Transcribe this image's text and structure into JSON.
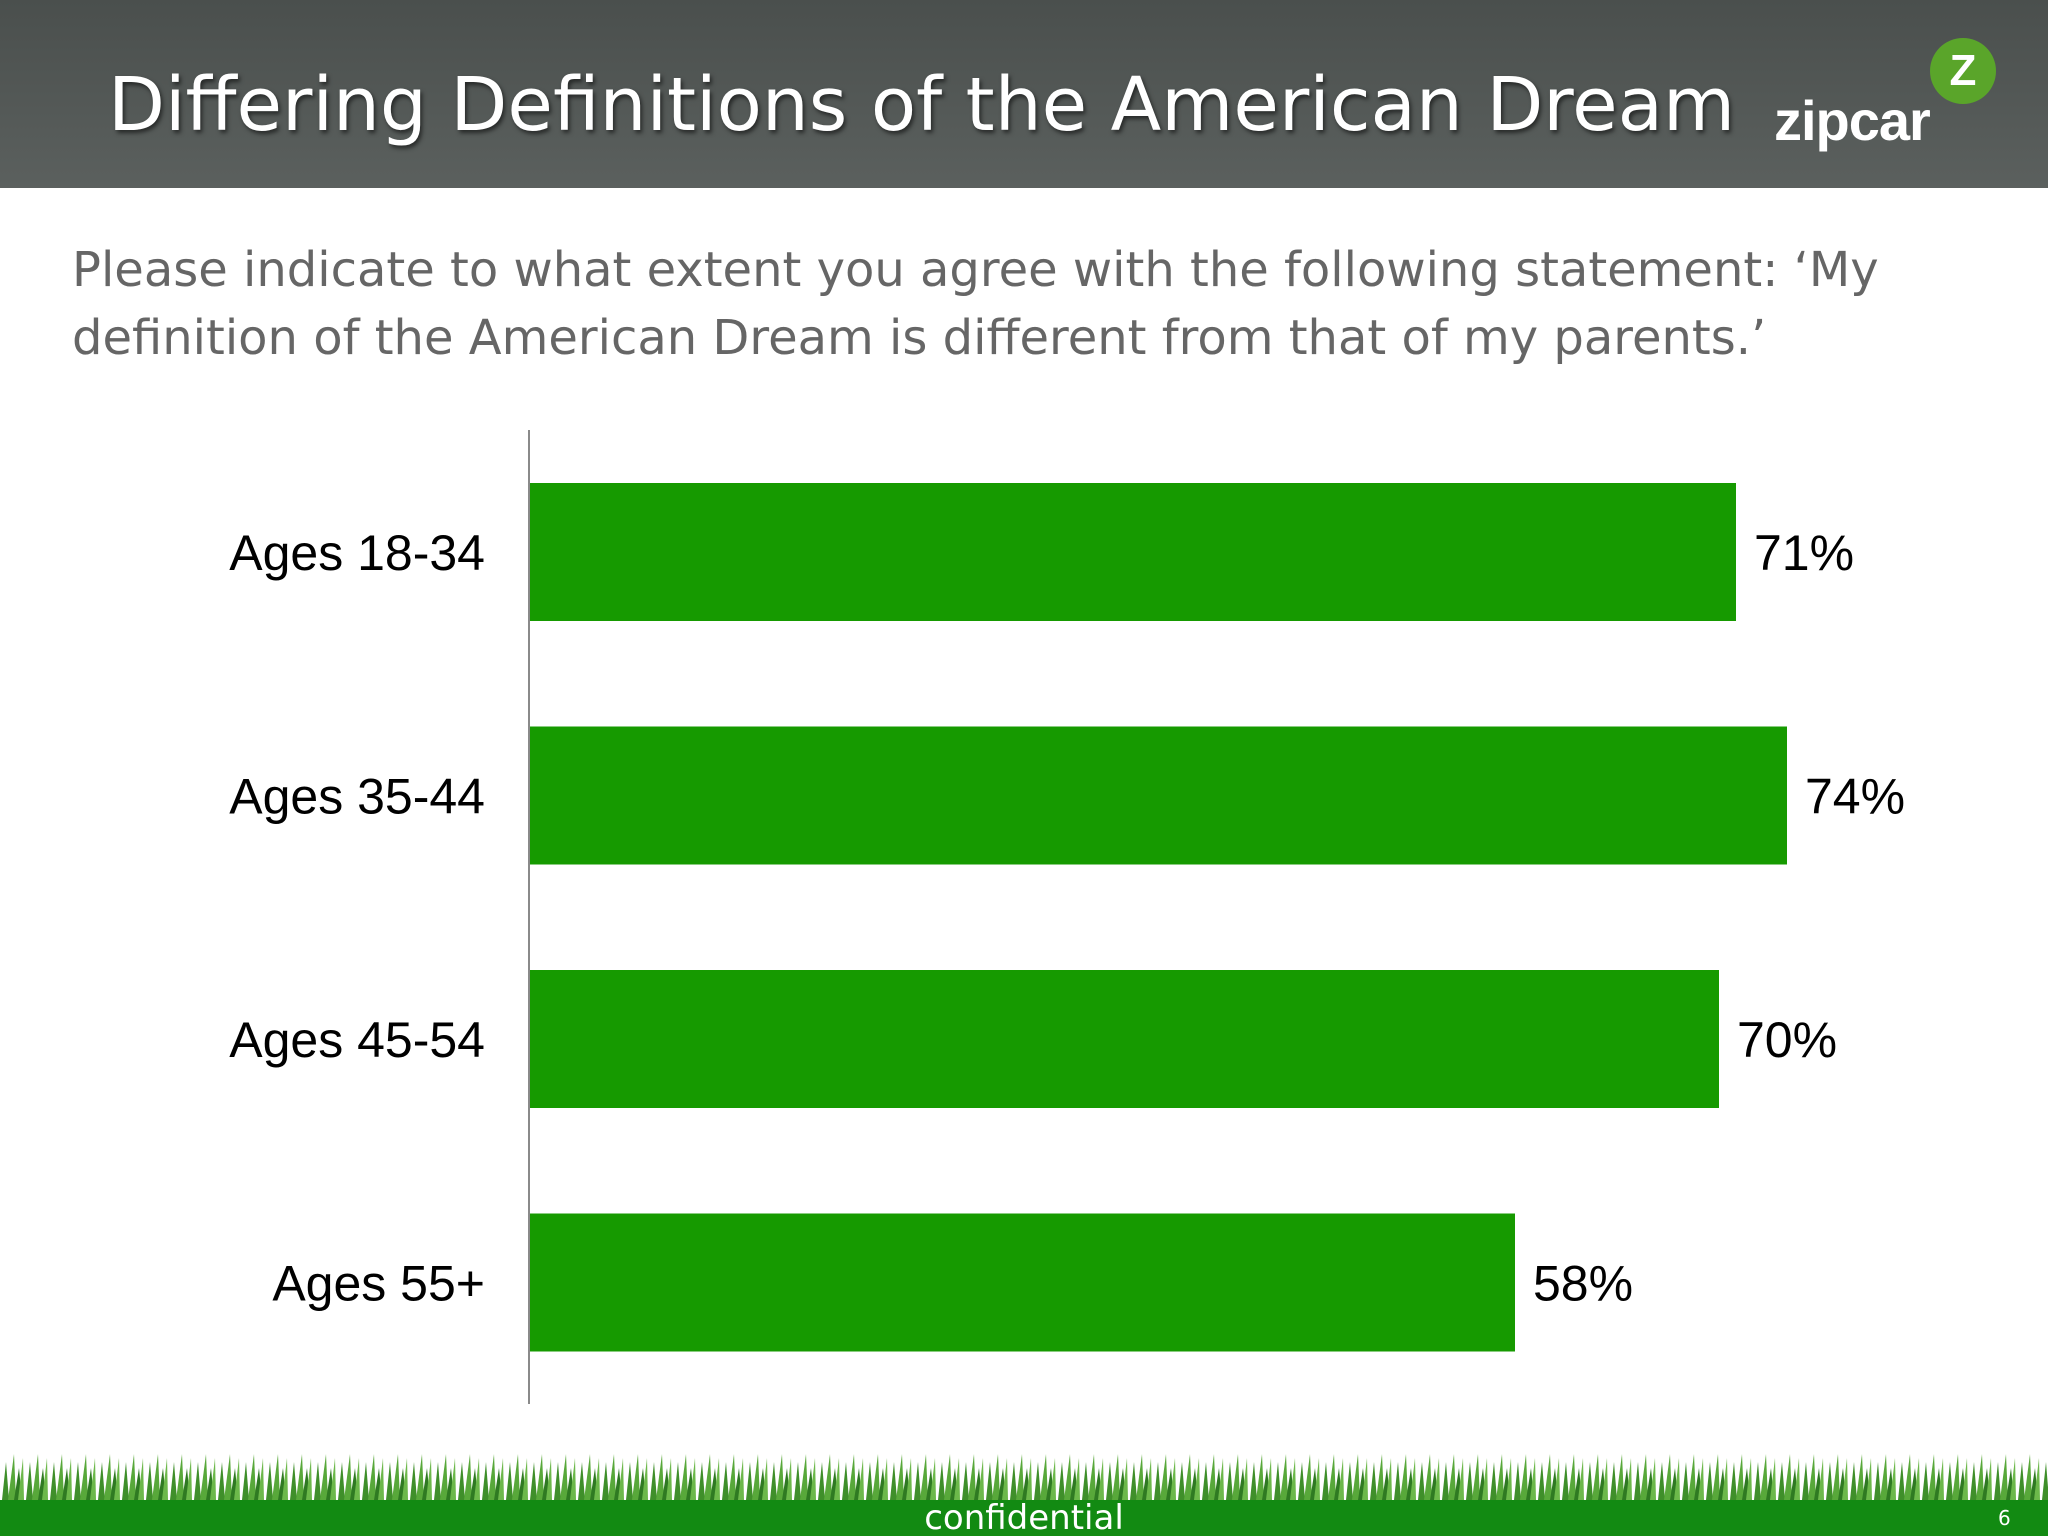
{
  "slide": {
    "title": "Differing Definitions of the American Dream",
    "subtitle": "Please indicate to what extent you agree with the following statement: ‘My definition of the American Dream is different from that of my parents.’",
    "footer_text": "confidential",
    "page_number": "6"
  },
  "logo": {
    "text": "zipcar",
    "badge_letter": "Z"
  },
  "colors": {
    "bar": "#169a00",
    "header": "#515654",
    "footer": "#128a12"
  },
  "chart_data": {
    "type": "bar",
    "orientation": "horizontal",
    "categories": [
      "Ages 18-34",
      "Ages 35-44",
      "Ages 45-54",
      "Ages 55+"
    ],
    "values": [
      71,
      74,
      70,
      58
    ],
    "value_labels": [
      "71%",
      "74%",
      "70%",
      "58%"
    ],
    "unit": "%",
    "xlim": [
      0,
      100
    ],
    "grid": false,
    "legend": "none"
  }
}
